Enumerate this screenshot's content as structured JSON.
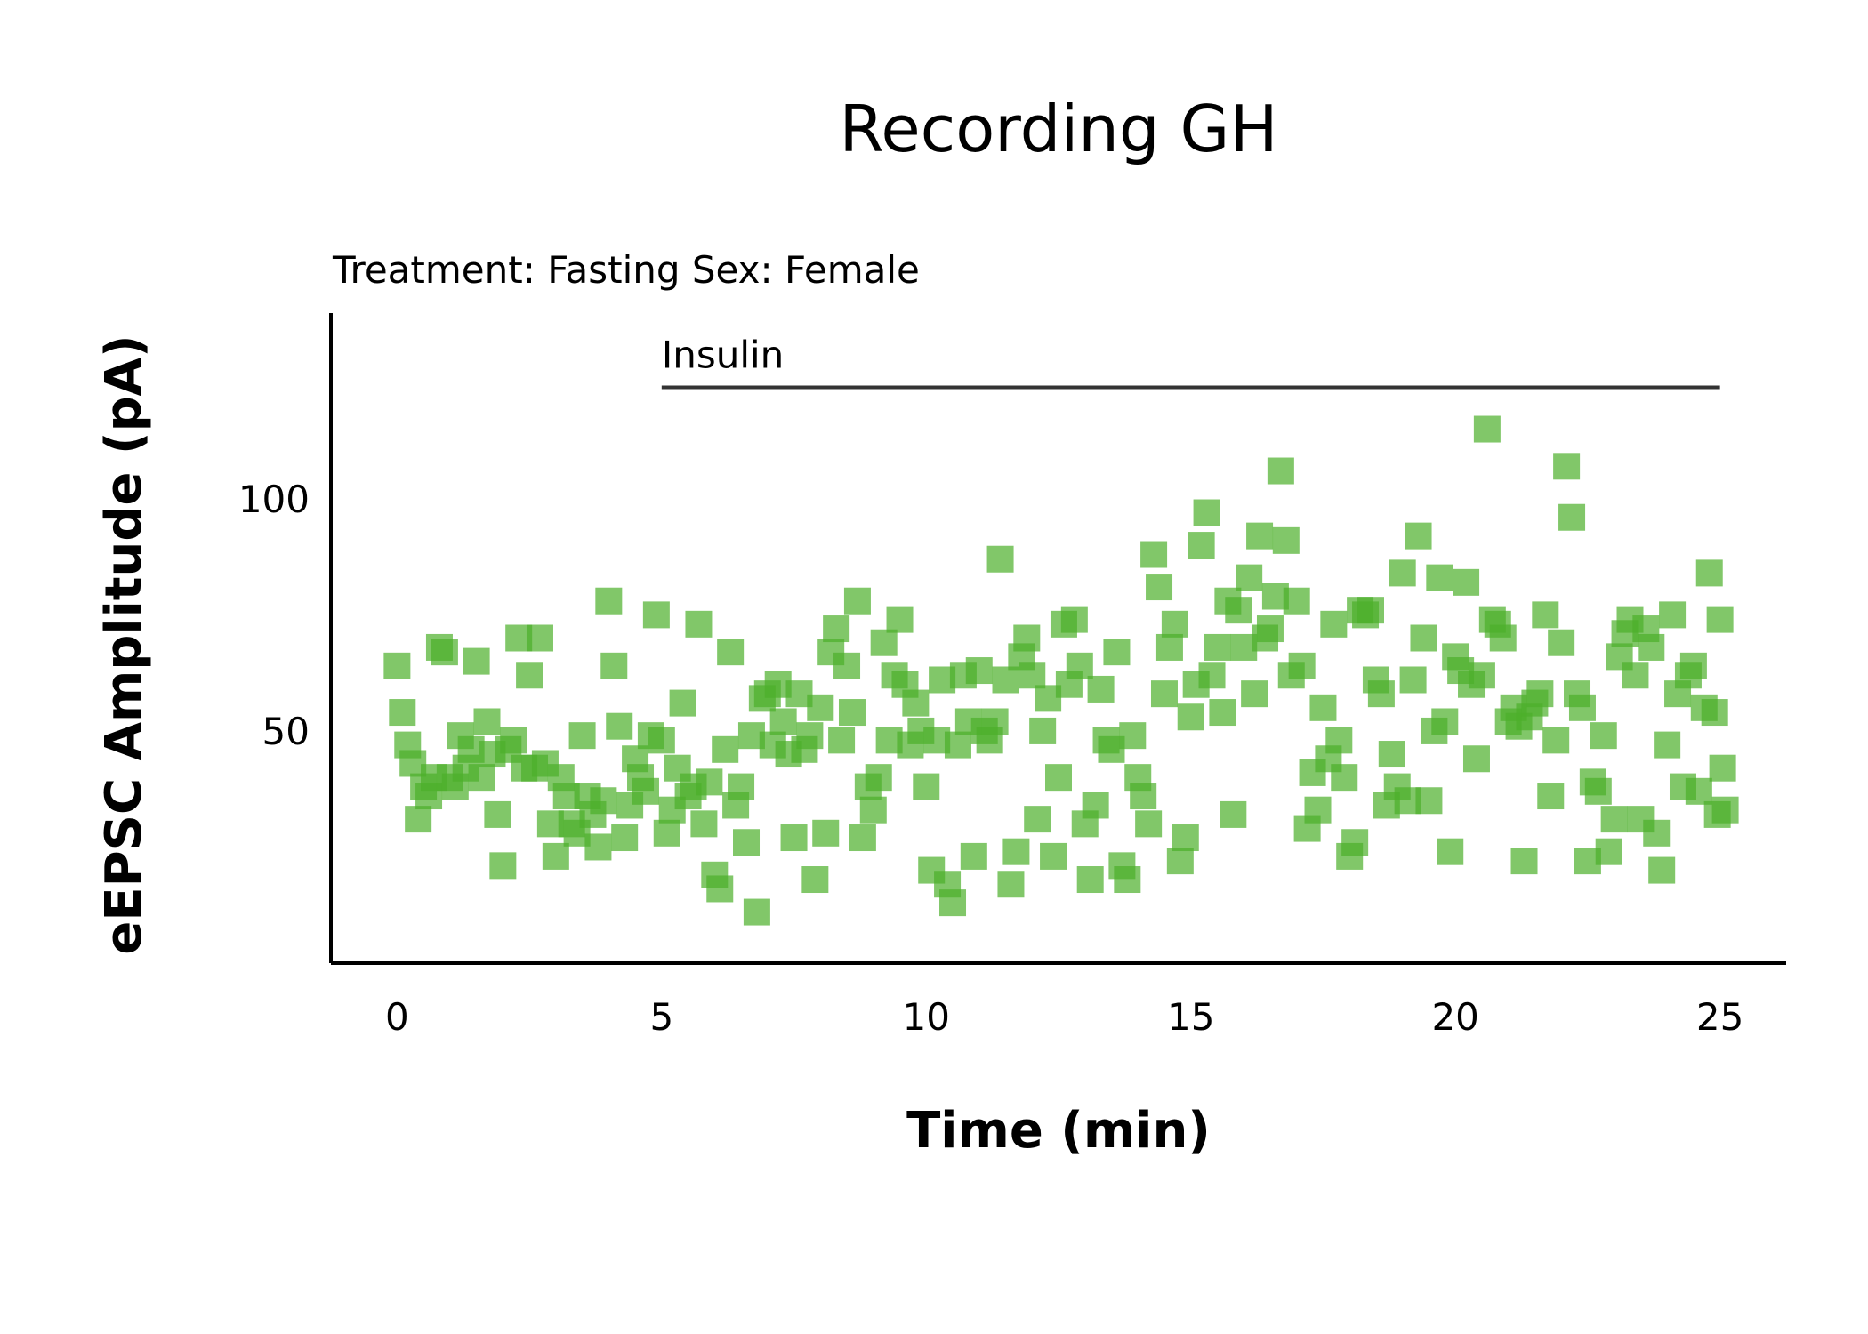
{
  "chart_data": {
    "type": "scatter",
    "title": "Recording GH",
    "subtitle": "Treatment: Fasting  Sex: Female",
    "xlabel": "Time (min)",
    "ylabel": "eEPSC Amplitude (pA)",
    "xlim": [
      -1.25,
      26.25
    ],
    "ylim": [
      0,
      140
    ],
    "xticks": [
      0,
      5,
      10,
      15,
      20,
      25
    ],
    "yticks": [
      50,
      100
    ],
    "grid": false,
    "marker": "square",
    "color": "#4caf2a",
    "annotation": {
      "label": "Insulin",
      "x_start": 5,
      "x_end": 25,
      "y": 124
    },
    "series": [
      {
        "points": [
          [
            0,
            64
          ],
          [
            0.1,
            54
          ],
          [
            0.2,
            47
          ],
          [
            0.3,
            43
          ],
          [
            0.4,
            31
          ],
          [
            0.5,
            38
          ],
          [
            0.6,
            36
          ],
          [
            0.7,
            40
          ],
          [
            0.8,
            68
          ],
          [
            0.9,
            67
          ],
          [
            1,
            40
          ],
          [
            1.1,
            38
          ],
          [
            1.2,
            49
          ],
          [
            1.3,
            42
          ],
          [
            1.4,
            46
          ],
          [
            1.5,
            65
          ],
          [
            1.6,
            40
          ],
          [
            1.7,
            52
          ],
          [
            1.8,
            45
          ],
          [
            1.9,
            32
          ],
          [
            2,
            21
          ],
          [
            2.1,
            46
          ],
          [
            2.2,
            48
          ],
          [
            2.3,
            70
          ],
          [
            2.4,
            42
          ],
          [
            2.5,
            62
          ],
          [
            2.6,
            42
          ],
          [
            2.7,
            70
          ],
          [
            2.8,
            43
          ],
          [
            2.9,
            30
          ],
          [
            3,
            23
          ],
          [
            3.1,
            40
          ],
          [
            3.2,
            36
          ],
          [
            3.3,
            30
          ],
          [
            3.4,
            28
          ],
          [
            3.5,
            49
          ],
          [
            3.6,
            36
          ],
          [
            3.7,
            32
          ],
          [
            3.8,
            25
          ],
          [
            3.9,
            35
          ],
          [
            4,
            78
          ],
          [
            4.1,
            64
          ],
          [
            4.2,
            51
          ],
          [
            4.3,
            27
          ],
          [
            4.4,
            34
          ],
          [
            4.5,
            44
          ],
          [
            4.6,
            40
          ],
          [
            4.7,
            37
          ],
          [
            4.8,
            49
          ],
          [
            4.9,
            75
          ],
          [
            5,
            48
          ],
          [
            5.1,
            28
          ],
          [
            5.2,
            33
          ],
          [
            5.3,
            42
          ],
          [
            5.4,
            56
          ],
          [
            5.5,
            36
          ],
          [
            5.6,
            38
          ],
          [
            5.7,
            73
          ],
          [
            5.8,
            30
          ],
          [
            5.9,
            39
          ],
          [
            6,
            19
          ],
          [
            6.1,
            16
          ],
          [
            6.2,
            46
          ],
          [
            6.3,
            67
          ],
          [
            6.4,
            34
          ],
          [
            6.5,
            38
          ],
          [
            6.6,
            26
          ],
          [
            6.7,
            49
          ],
          [
            6.8,
            11
          ],
          [
            6.9,
            57
          ],
          [
            7,
            58
          ],
          [
            7.1,
            47
          ],
          [
            7.2,
            60
          ],
          [
            7.3,
            52
          ],
          [
            7.4,
            45
          ],
          [
            7.5,
            27
          ],
          [
            7.6,
            58
          ],
          [
            7.7,
            46
          ],
          [
            7.8,
            49
          ],
          [
            7.9,
            18
          ],
          [
            8,
            55
          ],
          [
            8.1,
            28
          ],
          [
            8.2,
            67
          ],
          [
            8.3,
            72
          ],
          [
            8.4,
            48
          ],
          [
            8.5,
            64
          ],
          [
            8.6,
            54
          ],
          [
            8.7,
            78
          ],
          [
            8.8,
            27
          ],
          [
            8.9,
            38
          ],
          [
            9,
            33
          ],
          [
            9.1,
            40
          ],
          [
            9.2,
            69
          ],
          [
            9.3,
            48
          ],
          [
            9.4,
            62
          ],
          [
            9.5,
            74
          ],
          [
            9.6,
            60
          ],
          [
            9.7,
            47
          ],
          [
            9.8,
            56
          ],
          [
            9.9,
            50
          ],
          [
            10,
            38
          ],
          [
            10.1,
            20
          ],
          [
            10.2,
            48
          ],
          [
            10.3,
            61
          ],
          [
            10.4,
            17
          ],
          [
            10.5,
            13
          ],
          [
            10.6,
            47
          ],
          [
            10.7,
            62
          ],
          [
            10.8,
            52
          ],
          [
            10.9,
            23
          ],
          [
            11,
            63
          ],
          [
            11.1,
            50
          ],
          [
            11.2,
            48
          ],
          [
            11.3,
            52
          ],
          [
            11.4,
            87
          ],
          [
            11.5,
            61
          ],
          [
            11.6,
            17
          ],
          [
            11.7,
            24
          ],
          [
            11.8,
            66
          ],
          [
            11.9,
            70
          ],
          [
            12,
            62
          ],
          [
            12.1,
            31
          ],
          [
            12.2,
            50
          ],
          [
            12.3,
            57
          ],
          [
            12.4,
            23
          ],
          [
            12.5,
            40
          ],
          [
            12.6,
            73
          ],
          [
            12.7,
            60
          ],
          [
            12.8,
            74
          ],
          [
            12.9,
            64
          ],
          [
            13,
            30
          ],
          [
            13.1,
            18
          ],
          [
            13.2,
            34
          ],
          [
            13.3,
            59
          ],
          [
            13.4,
            48
          ],
          [
            13.5,
            46
          ],
          [
            13.6,
            67
          ],
          [
            13.7,
            21
          ],
          [
            13.8,
            18
          ],
          [
            13.9,
            49
          ],
          [
            14,
            40
          ],
          [
            14.1,
            36
          ],
          [
            14.2,
            30
          ],
          [
            14.3,
            88
          ],
          [
            14.4,
            81
          ],
          [
            14.5,
            58
          ],
          [
            14.6,
            68
          ],
          [
            14.7,
            73
          ],
          [
            14.8,
            22
          ],
          [
            14.9,
            27
          ],
          [
            15,
            53
          ],
          [
            15.1,
            60
          ],
          [
            15.2,
            90
          ],
          [
            15.3,
            97
          ],
          [
            15.4,
            62
          ],
          [
            15.5,
            68
          ],
          [
            15.6,
            54
          ],
          [
            15.7,
            78
          ],
          [
            15.8,
            32
          ],
          [
            15.9,
            76
          ],
          [
            16,
            68
          ],
          [
            16.1,
            83
          ],
          [
            16.2,
            58
          ],
          [
            16.3,
            92
          ],
          [
            16.4,
            70
          ],
          [
            16.5,
            72
          ],
          [
            16.6,
            79
          ],
          [
            16.7,
            106
          ],
          [
            16.8,
            91
          ],
          [
            16.9,
            62
          ],
          [
            17,
            78
          ],
          [
            17.1,
            64
          ],
          [
            17.2,
            29
          ],
          [
            17.3,
            41
          ],
          [
            17.4,
            33
          ],
          [
            17.5,
            55
          ],
          [
            17.6,
            44
          ],
          [
            17.7,
            73
          ],
          [
            17.8,
            48
          ],
          [
            17.9,
            40
          ],
          [
            18,
            23
          ],
          [
            18.1,
            26
          ],
          [
            18.2,
            76
          ],
          [
            18.3,
            75
          ],
          [
            18.4,
            76
          ],
          [
            18.5,
            61
          ],
          [
            18.6,
            58
          ],
          [
            18.7,
            34
          ],
          [
            18.8,
            45
          ],
          [
            18.9,
            38
          ],
          [
            19,
            84
          ],
          [
            19.1,
            35
          ],
          [
            19.2,
            61
          ],
          [
            19.3,
            92
          ],
          [
            19.4,
            70
          ],
          [
            19.5,
            35
          ],
          [
            19.6,
            50
          ],
          [
            19.7,
            83
          ],
          [
            19.8,
            52
          ],
          [
            19.9,
            24
          ],
          [
            20,
            66
          ],
          [
            20.1,
            63
          ],
          [
            20.2,
            82
          ],
          [
            20.3,
            60
          ],
          [
            20.4,
            44
          ],
          [
            20.5,
            62
          ],
          [
            20.6,
            115
          ],
          [
            20.7,
            74
          ],
          [
            20.8,
            73
          ],
          [
            20.9,
            70
          ],
          [
            21,
            52
          ],
          [
            21.1,
            55
          ],
          [
            21.2,
            51
          ],
          [
            21.3,
            22
          ],
          [
            21.4,
            53
          ],
          [
            21.5,
            56
          ],
          [
            21.6,
            58
          ],
          [
            21.7,
            75
          ],
          [
            21.8,
            36
          ],
          [
            21.9,
            48
          ],
          [
            22,
            69
          ],
          [
            22.1,
            107
          ],
          [
            22.2,
            96
          ],
          [
            22.3,
            58
          ],
          [
            22.4,
            55
          ],
          [
            22.5,
            22
          ],
          [
            22.6,
            39
          ],
          [
            22.7,
            37
          ],
          [
            22.8,
            49
          ],
          [
            22.9,
            24
          ],
          [
            23,
            31
          ],
          [
            23.1,
            66
          ],
          [
            23.2,
            71
          ],
          [
            23.3,
            74
          ],
          [
            23.4,
            62
          ],
          [
            23.5,
            31
          ],
          [
            23.6,
            72
          ],
          [
            23.7,
            68
          ],
          [
            23.8,
            28
          ],
          [
            23.9,
            20
          ],
          [
            24,
            47
          ],
          [
            24.1,
            75
          ],
          [
            24.2,
            58
          ],
          [
            24.3,
            38
          ],
          [
            24.4,
            62
          ],
          [
            24.5,
            64
          ],
          [
            24.6,
            37
          ],
          [
            24.7,
            55
          ],
          [
            24.8,
            84
          ],
          [
            24.9,
            54
          ],
          [
            25,
            74
          ],
          [
            25.05,
            42
          ],
          [
            25.1,
            33
          ],
          [
            24.95,
            32
          ]
        ]
      }
    ]
  }
}
